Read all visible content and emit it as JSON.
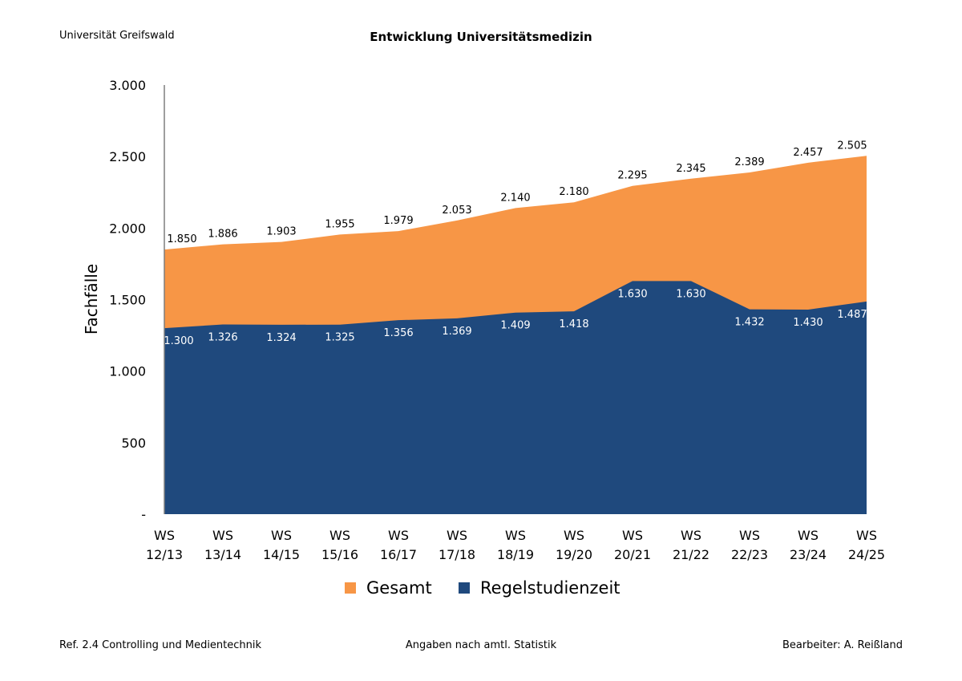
{
  "header": {
    "organization": "Universität Greifswald"
  },
  "footer": {
    "left": "Ref. 2.4 Controlling und Medientechnik",
    "center": "Angaben nach amtl. Statistik",
    "right": "Bearbeiter: A. Reißland"
  },
  "chart_data": {
    "type": "area",
    "title": "Entwicklung Universitätsmedizin",
    "ylabel": "Fachfälle",
    "xlabel": "",
    "ylim": [
      0,
      3000
    ],
    "yticks": [
      0,
      500,
      1000,
      1500,
      2000,
      2500,
      3000
    ],
    "ytick_labels": [
      "-",
      "500",
      "1.000",
      "1.500",
      "2.000",
      "2.500",
      "3.000"
    ],
    "grid": false,
    "legend_position": "bottom",
    "categories": [
      [
        "WS",
        "12/13"
      ],
      [
        "WS",
        "13/14"
      ],
      [
        "WS",
        "14/15"
      ],
      [
        "WS",
        "15/16"
      ],
      [
        "WS",
        "16/17"
      ],
      [
        "WS",
        "17/18"
      ],
      [
        "WS",
        "18/19"
      ],
      [
        "WS",
        "19/20"
      ],
      [
        "WS",
        "20/21"
      ],
      [
        "WS",
        "21/22"
      ],
      [
        "WS",
        "22/23"
      ],
      [
        "WS",
        "23/24"
      ],
      [
        "WS",
        "24/25"
      ]
    ],
    "series": [
      {
        "name": "Gesamt",
        "color": "#F79646",
        "values": [
          1850,
          1886,
          1903,
          1955,
          1979,
          2053,
          2140,
          2180,
          2295,
          2345,
          2389,
          2457,
          2505
        ],
        "labels": [
          "1.850",
          "1.886",
          "1.903",
          "1.955",
          "1.979",
          "2.053",
          "2.140",
          "2.180",
          "2.295",
          "2.345",
          "2.389",
          "2.457",
          "2.505"
        ]
      },
      {
        "name": "Regelstudienzeit",
        "color": "#1F497D",
        "values": [
          1300,
          1326,
          1324,
          1325,
          1356,
          1369,
          1409,
          1418,
          1630,
          1630,
          1432,
          1430,
          1487
        ],
        "labels": [
          "1.300",
          "1.326",
          "1.324",
          "1.325",
          "1.356",
          "1.369",
          "1.409",
          "1.418",
          "1.630",
          "1.630",
          "1.432",
          "1.430",
          "1.487"
        ]
      }
    ]
  }
}
